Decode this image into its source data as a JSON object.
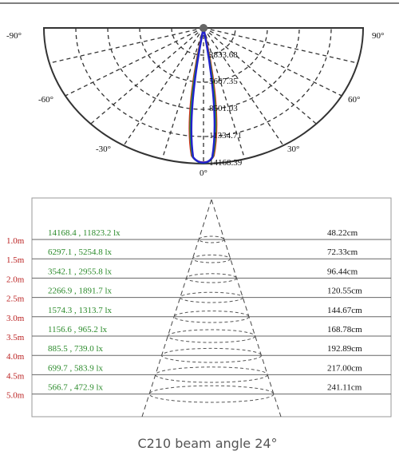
{
  "polar": {
    "angle_labels": [
      "-90°",
      "90°",
      "-60°",
      "60°",
      "-30°",
      "30°",
      "0°"
    ],
    "radial_labels": [
      "2833.68",
      "5667.35",
      "8501.03",
      "11334.71",
      "14168.39"
    ]
  },
  "illuminance": {
    "rows": [
      {
        "distance": "1.0m",
        "lux": "14168.4 , 11823.2 lx",
        "diameter": "48.22cm"
      },
      {
        "distance": "1.5m",
        "lux": "6297.1 , 5254.8 lx",
        "diameter": "72.33cm"
      },
      {
        "distance": "2.0m",
        "lux": "3542.1 , 2955.8 lx",
        "diameter": "96.44cm"
      },
      {
        "distance": "2.5m",
        "lux": "2266.9 , 1891.7 lx",
        "diameter": "120.55cm"
      },
      {
        "distance": "3.0m",
        "lux": "1574.3 , 1313.7 lx",
        "diameter": "144.67cm"
      },
      {
        "distance": "3.5m",
        "lux": "1156.6 , 965.2 lx",
        "diameter": "168.78cm"
      },
      {
        "distance": "4.0m",
        "lux": "885.5 , 739.0 lx",
        "diameter": "192.89cm"
      },
      {
        "distance": "4.5m",
        "lux": "699.7 , 583.9 lx",
        "diameter": "217.00cm"
      },
      {
        "distance": "5.0m",
        "lux": "566.7 , 472.9 lx",
        "diameter": "241.11cm"
      }
    ]
  },
  "caption": "C210 beam angle 24°"
}
